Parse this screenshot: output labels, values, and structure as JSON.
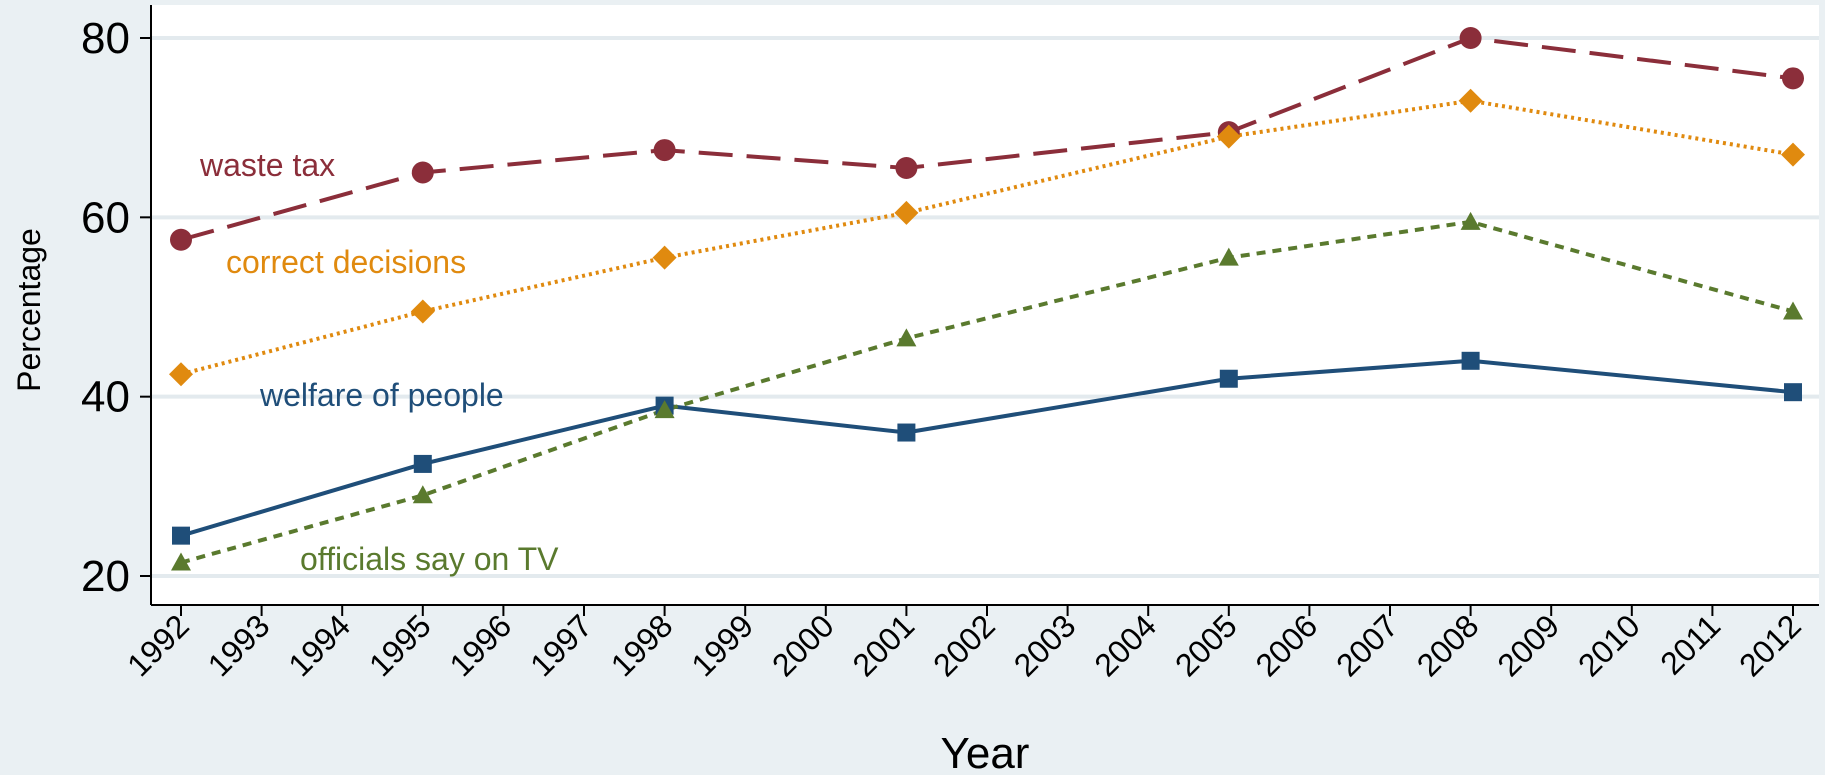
{
  "chart_data": {
    "type": "line",
    "xlabel": "Year",
    "ylabel": "Percentage",
    "ylim": [
      20,
      80
    ],
    "yticks": [
      20,
      40,
      60,
      80
    ],
    "xticks": [
      1992,
      1993,
      1994,
      1995,
      1996,
      1997,
      1998,
      1999,
      2000,
      2001,
      2002,
      2003,
      2004,
      2005,
      2006,
      2007,
      2008,
      2009,
      2010,
      2011,
      2012
    ],
    "grid": true,
    "legend": "none (series labeled directly on plot)",
    "x": [
      1992,
      1995,
      1998,
      2001,
      2005,
      2008,
      2012
    ],
    "series": [
      {
        "name": "waste tax",
        "color": "#8b2e3a",
        "dash": "long-dash",
        "marker": "circle",
        "values": [
          57.5,
          65.0,
          67.5,
          65.5,
          69.5,
          80.0,
          75.5
        ]
      },
      {
        "name": "correct decisions",
        "color": "#e08a0f",
        "dash": "dotted",
        "marker": "diamond",
        "values": [
          42.5,
          49.5,
          55.5,
          60.5,
          69.0,
          73.0,
          67.0
        ]
      },
      {
        "name": "welfare of people",
        "color": "#1f4e79",
        "dash": "solid",
        "marker": "square",
        "values": [
          24.5,
          32.5,
          39.0,
          36.0,
          42.0,
          44.0,
          40.5
        ]
      },
      {
        "name": "officials say on TV",
        "color": "#5a7a2e",
        "dash": "short-dash",
        "marker": "triangle",
        "values": [
          21.5,
          29.0,
          38.5,
          46.5,
          55.5,
          59.5,
          49.5
        ]
      }
    ]
  }
}
